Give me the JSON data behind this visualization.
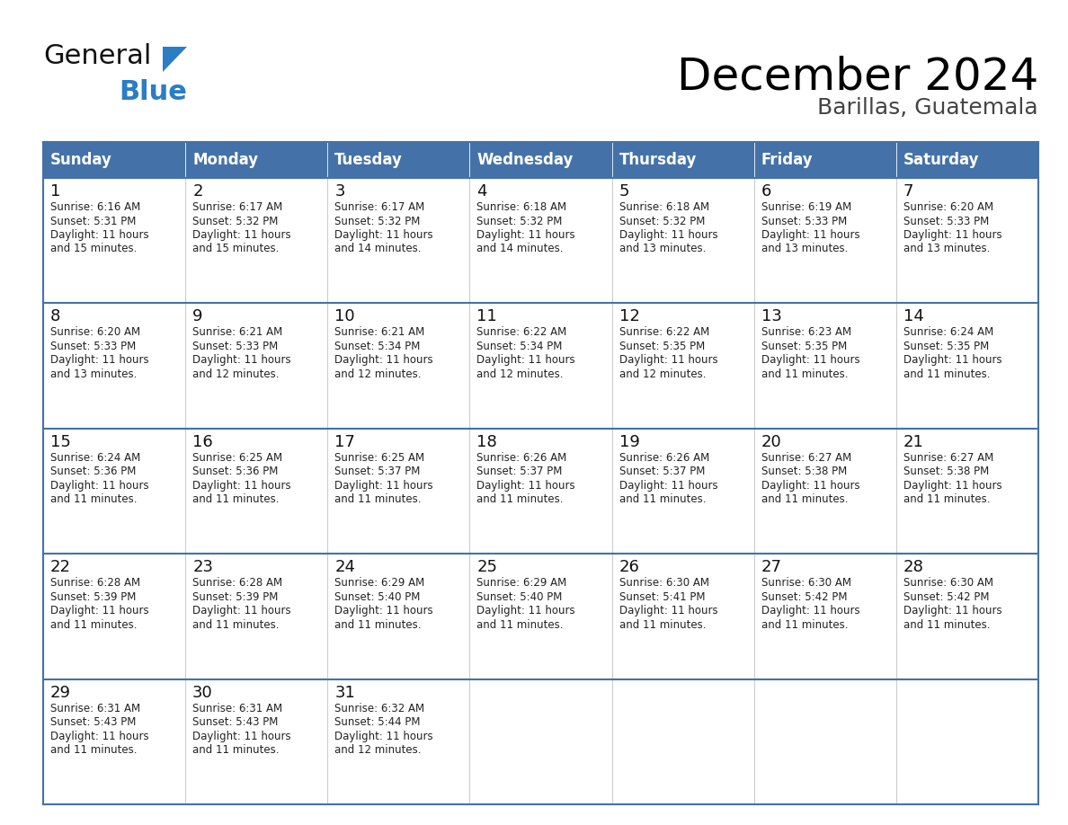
{
  "title": "December 2024",
  "subtitle": "Barillas, Guatemala",
  "header_bg": "#4472a8",
  "header_text_color": "#ffffff",
  "cell_bg": "#ffffff",
  "border_color": "#4472a8",
  "border_color_light": "#6699cc",
  "days_of_week": [
    "Sunday",
    "Monday",
    "Tuesday",
    "Wednesday",
    "Thursday",
    "Friday",
    "Saturday"
  ],
  "calendar": [
    [
      {
        "day": 1,
        "sunrise": "6:16 AM",
        "sunset": "5:31 PM",
        "daylight_h": "11 hours",
        "daylight_m": "and 15 minutes."
      },
      {
        "day": 2,
        "sunrise": "6:17 AM",
        "sunset": "5:32 PM",
        "daylight_h": "11 hours",
        "daylight_m": "and 15 minutes."
      },
      {
        "day": 3,
        "sunrise": "6:17 AM",
        "sunset": "5:32 PM",
        "daylight_h": "11 hours",
        "daylight_m": "and 14 minutes."
      },
      {
        "day": 4,
        "sunrise": "6:18 AM",
        "sunset": "5:32 PM",
        "daylight_h": "11 hours",
        "daylight_m": "and 14 minutes."
      },
      {
        "day": 5,
        "sunrise": "6:18 AM",
        "sunset": "5:32 PM",
        "daylight_h": "11 hours",
        "daylight_m": "and 13 minutes."
      },
      {
        "day": 6,
        "sunrise": "6:19 AM",
        "sunset": "5:33 PM",
        "daylight_h": "11 hours",
        "daylight_m": "and 13 minutes."
      },
      {
        "day": 7,
        "sunrise": "6:20 AM",
        "sunset": "5:33 PM",
        "daylight_h": "11 hours",
        "daylight_m": "and 13 minutes."
      }
    ],
    [
      {
        "day": 8,
        "sunrise": "6:20 AM",
        "sunset": "5:33 PM",
        "daylight_h": "11 hours",
        "daylight_m": "and 13 minutes."
      },
      {
        "day": 9,
        "sunrise": "6:21 AM",
        "sunset": "5:33 PM",
        "daylight_h": "11 hours",
        "daylight_m": "and 12 minutes."
      },
      {
        "day": 10,
        "sunrise": "6:21 AM",
        "sunset": "5:34 PM",
        "daylight_h": "11 hours",
        "daylight_m": "and 12 minutes."
      },
      {
        "day": 11,
        "sunrise": "6:22 AM",
        "sunset": "5:34 PM",
        "daylight_h": "11 hours",
        "daylight_m": "and 12 minutes."
      },
      {
        "day": 12,
        "sunrise": "6:22 AM",
        "sunset": "5:35 PM",
        "daylight_h": "11 hours",
        "daylight_m": "and 12 minutes."
      },
      {
        "day": 13,
        "sunrise": "6:23 AM",
        "sunset": "5:35 PM",
        "daylight_h": "11 hours",
        "daylight_m": "and 11 minutes."
      },
      {
        "day": 14,
        "sunrise": "6:24 AM",
        "sunset": "5:35 PM",
        "daylight_h": "11 hours",
        "daylight_m": "and 11 minutes."
      }
    ],
    [
      {
        "day": 15,
        "sunrise": "6:24 AM",
        "sunset": "5:36 PM",
        "daylight_h": "11 hours",
        "daylight_m": "and 11 minutes."
      },
      {
        "day": 16,
        "sunrise": "6:25 AM",
        "sunset": "5:36 PM",
        "daylight_h": "11 hours",
        "daylight_m": "and 11 minutes."
      },
      {
        "day": 17,
        "sunrise": "6:25 AM",
        "sunset": "5:37 PM",
        "daylight_h": "11 hours",
        "daylight_m": "and 11 minutes."
      },
      {
        "day": 18,
        "sunrise": "6:26 AM",
        "sunset": "5:37 PM",
        "daylight_h": "11 hours",
        "daylight_m": "and 11 minutes."
      },
      {
        "day": 19,
        "sunrise": "6:26 AM",
        "sunset": "5:37 PM",
        "daylight_h": "11 hours",
        "daylight_m": "and 11 minutes."
      },
      {
        "day": 20,
        "sunrise": "6:27 AM",
        "sunset": "5:38 PM",
        "daylight_h": "11 hours",
        "daylight_m": "and 11 minutes."
      },
      {
        "day": 21,
        "sunrise": "6:27 AM",
        "sunset": "5:38 PM",
        "daylight_h": "11 hours",
        "daylight_m": "and 11 minutes."
      }
    ],
    [
      {
        "day": 22,
        "sunrise": "6:28 AM",
        "sunset": "5:39 PM",
        "daylight_h": "11 hours",
        "daylight_m": "and 11 minutes."
      },
      {
        "day": 23,
        "sunrise": "6:28 AM",
        "sunset": "5:39 PM",
        "daylight_h": "11 hours",
        "daylight_m": "and 11 minutes."
      },
      {
        "day": 24,
        "sunrise": "6:29 AM",
        "sunset": "5:40 PM",
        "daylight_h": "11 hours",
        "daylight_m": "and 11 minutes."
      },
      {
        "day": 25,
        "sunrise": "6:29 AM",
        "sunset": "5:40 PM",
        "daylight_h": "11 hours",
        "daylight_m": "and 11 minutes."
      },
      {
        "day": 26,
        "sunrise": "6:30 AM",
        "sunset": "5:41 PM",
        "daylight_h": "11 hours",
        "daylight_m": "and 11 minutes."
      },
      {
        "day": 27,
        "sunrise": "6:30 AM",
        "sunset": "5:42 PM",
        "daylight_h": "11 hours",
        "daylight_m": "and 11 minutes."
      },
      {
        "day": 28,
        "sunrise": "6:30 AM",
        "sunset": "5:42 PM",
        "daylight_h": "11 hours",
        "daylight_m": "and 11 minutes."
      }
    ],
    [
      {
        "day": 29,
        "sunrise": "6:31 AM",
        "sunset": "5:43 PM",
        "daylight_h": "11 hours",
        "daylight_m": "and 11 minutes."
      },
      {
        "day": 30,
        "sunrise": "6:31 AM",
        "sunset": "5:43 PM",
        "daylight_h": "11 hours",
        "daylight_m": "and 11 minutes."
      },
      {
        "day": 31,
        "sunrise": "6:32 AM",
        "sunset": "5:44 PM",
        "daylight_h": "11 hours",
        "daylight_m": "and 12 minutes."
      },
      null,
      null,
      null,
      null
    ]
  ],
  "logo_general_color": "#111111",
  "logo_blue_color": "#2b7dc4",
  "logo_triangle_color": "#2b7dc4",
  "title_fontsize": 36,
  "subtitle_fontsize": 18,
  "header_fontsize": 12,
  "day_num_fontsize": 13,
  "cell_text_fontsize": 8.5
}
